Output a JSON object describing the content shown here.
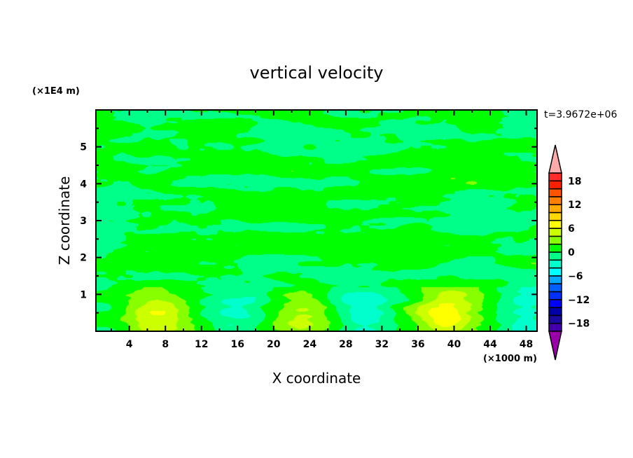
{
  "chart_data": {
    "type": "heatmap",
    "subtype": "filled-contour",
    "title": "vertical velocity",
    "xlabel": "X coordinate",
    "ylabel": "Z coordinate",
    "x_unit": "(×1000 m)",
    "y_unit": "(×1E4 m)",
    "time_label": "t=3.9672e+06",
    "xlim": [
      0.3,
      49.2
    ],
    "ylim": [
      0,
      6
    ],
    "x_ticks": [
      4,
      8,
      12,
      16,
      20,
      24,
      28,
      32,
      36,
      40,
      44,
      48
    ],
    "x_tick_labels": [
      "4",
      "8",
      "12",
      "16",
      "20",
      "24",
      "28",
      "32",
      "36",
      "40",
      "44",
      "48"
    ],
    "y_ticks": [
      1,
      2,
      3,
      4,
      5
    ],
    "y_tick_labels": [
      "1",
      "2",
      "3",
      "4",
      "5"
    ],
    "colorbar": {
      "levels": [
        -20,
        -18,
        -16,
        -14,
        -12,
        -10,
        -8,
        -6,
        -4,
        -2,
        0,
        2,
        4,
        6,
        8,
        10,
        12,
        14,
        16,
        18,
        20
      ],
      "tick_values": [
        18,
        12,
        6,
        0,
        -6,
        -12,
        -18
      ],
      "tick_labels": [
        "18",
        "12",
        "6",
        "0",
        "−6",
        "−12",
        "−18"
      ],
      "colors_low_to_high": [
        "#4400aa",
        "#1a0aa0",
        "#0000a8",
        "#0000ff",
        "#0030ff",
        "#0060ff",
        "#00a8ff",
        "#00ffff",
        "#00ffcc",
        "#00ff88",
        "#00ff00",
        "#88ff00",
        "#ccff00",
        "#ffff00",
        "#ffd800",
        "#ffaa00",
        "#ff7f00",
        "#ff5500",
        "#ff2000",
        "#ff2a2a"
      ],
      "over_color": "#ffaaaa",
      "under_color": "#9900aa"
    },
    "dominant_range": [
      -2,
      2
    ],
    "features": [
      {
        "x": 7,
        "z": 0.4,
        "value": 5
      },
      {
        "x": 23,
        "z": 0.4,
        "value": 3
      },
      {
        "x": 39,
        "z": 0.5,
        "value": 5
      },
      {
        "x": 16,
        "z": 0.5,
        "value": -3
      },
      {
        "x": 30,
        "z": 0.4,
        "value": -3
      },
      {
        "x": 48,
        "z": 0.4,
        "value": -3
      }
    ]
  }
}
